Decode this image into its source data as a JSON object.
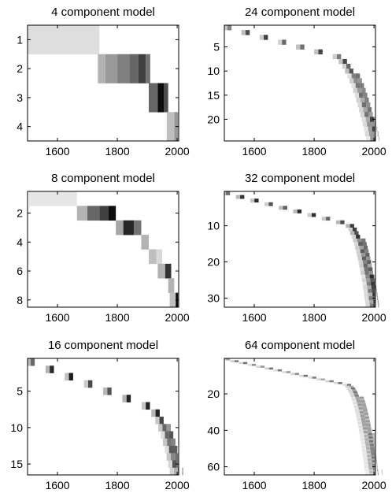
{
  "figure": {
    "description_colormap": "gray-inverted",
    "background_color": "#ffffff",
    "frame_color": "#000000"
  },
  "chart_data": [
    {
      "type": "heatmap",
      "title": "4 component model",
      "x_ticks": [
        1600,
        1800,
        2000
      ],
      "y_ticks": [
        1,
        2,
        3,
        4
      ],
      "xlim": [
        1500,
        2005
      ],
      "ylim": [
        0.5,
        4.5
      ],
      "y_reversed": true,
      "cells": [
        {
          "x0": 1500,
          "x1": 1740,
          "y": 1,
          "v": 0.13
        },
        {
          "x0": 1735,
          "x1": 1760,
          "y": 2,
          "v": 0.3
        },
        {
          "x0": 1760,
          "x1": 1800,
          "y": 2,
          "v": 0.4
        },
        {
          "x0": 1800,
          "x1": 1840,
          "y": 2,
          "v": 0.5
        },
        {
          "x0": 1840,
          "x1": 1870,
          "y": 2,
          "v": 0.6
        },
        {
          "x0": 1870,
          "x1": 1895,
          "y": 2,
          "v": 0.75
        },
        {
          "x0": 1895,
          "x1": 1910,
          "y": 2,
          "v": 0.55
        },
        {
          "x0": 1905,
          "x1": 1935,
          "y": 3,
          "v": 0.6
        },
        {
          "x0": 1935,
          "x1": 1955,
          "y": 3,
          "v": 0.95
        },
        {
          "x0": 1955,
          "x1": 1970,
          "y": 3,
          "v": 0.7
        },
        {
          "x0": 1965,
          "x1": 1990,
          "y": 4,
          "v": 0.25
        },
        {
          "x0": 1990,
          "x1": 2003,
          "y": 4,
          "v": 0.4
        }
      ]
    },
    {
      "type": "heatmap",
      "title": "24 component model",
      "x_ticks": [
        1600,
        1800,
        2000
      ],
      "y_ticks": [
        5,
        10,
        15,
        20
      ],
      "xlim": [
        1500,
        2005
      ],
      "ylim": [
        0.5,
        24.5
      ],
      "y_reversed": true,
      "diagonal": {
        "n": 24,
        "x_start": 1510,
        "x_knee": 1860,
        "x_end": 2003,
        "knee_frac": 0.25,
        "spread_start": 0.0,
        "spread_end": 25,
        "peak": 0.75
      }
    },
    {
      "type": "heatmap",
      "title": "8 component model",
      "x_ticks": [
        1600,
        1800,
        2000
      ],
      "y_ticks": [
        2,
        4,
        6,
        8
      ],
      "xlim": [
        1500,
        2005
      ],
      "ylim": [
        0.5,
        8.5
      ],
      "y_reversed": true,
      "cells": [
        {
          "x0": 1505,
          "x1": 1665,
          "y": 1,
          "v": 0.1
        },
        {
          "x0": 1665,
          "x1": 1700,
          "y": 2,
          "v": 0.3
        },
        {
          "x0": 1700,
          "x1": 1740,
          "y": 2,
          "v": 0.6
        },
        {
          "x0": 1740,
          "x1": 1770,
          "y": 2,
          "v": 0.75
        },
        {
          "x0": 1770,
          "x1": 1795,
          "y": 2,
          "v": 0.95
        },
        {
          "x0": 1795,
          "x1": 1820,
          "y": 3,
          "v": 0.35
        },
        {
          "x0": 1820,
          "x1": 1855,
          "y": 3,
          "v": 0.85
        },
        {
          "x0": 1855,
          "x1": 1880,
          "y": 3,
          "v": 0.55
        },
        {
          "x0": 1880,
          "x1": 1905,
          "y": 4,
          "v": 0.3
        },
        {
          "x0": 1905,
          "x1": 1930,
          "y": 5,
          "v": 0.25
        },
        {
          "x0": 1930,
          "x1": 1950,
          "y": 5,
          "v": 0.15
        },
        {
          "x0": 1935,
          "x1": 1960,
          "y": 6,
          "v": 0.3
        },
        {
          "x0": 1960,
          "x1": 1980,
          "y": 6,
          "v": 0.8
        },
        {
          "x0": 1970,
          "x1": 1990,
          "y": 7,
          "v": 0.3
        },
        {
          "x0": 1975,
          "x1": 1995,
          "y": 8,
          "v": 0.25
        },
        {
          "x0": 1995,
          "x1": 2003,
          "y": 8,
          "v": 0.95
        },
        {
          "x0": 1500,
          "x1": 1507,
          "y": 5,
          "v": 0.05
        }
      ]
    },
    {
      "type": "heatmap",
      "title": "32 component model",
      "x_ticks": [
        1600,
        1800,
        2000
      ],
      "y_ticks": [
        10,
        20,
        30
      ],
      "xlim": [
        1500,
        2005
      ],
      "ylim": [
        0.5,
        32.5
      ],
      "y_reversed": true,
      "diagonal": {
        "n": 32,
        "x_start": 1505,
        "x_knee": 1905,
        "x_end": 2003,
        "knee_frac": 0.27,
        "spread_start": 0.0,
        "spread_end": 30,
        "peak": 0.85
      }
    },
    {
      "type": "heatmap",
      "title": "16 component model",
      "x_ticks": [
        1600,
        1800,
        2000
      ],
      "y_ticks": [
        5,
        10,
        15
      ],
      "xlim": [
        1500,
        2005
      ],
      "ylim": [
        0.5,
        16.5
      ],
      "y_reversed": true,
      "diagonal": {
        "n": 16,
        "x_start": 1510,
        "x_knee": 1895,
        "x_end": 2003,
        "knee_frac": 0.4,
        "spread_start": 0.0,
        "spread_end": 20,
        "peak": 0.9
      }
    },
    {
      "type": "heatmap",
      "title": "64 component model",
      "x_ticks": [
        1600,
        1800,
        2000
      ],
      "y_ticks": [
        20,
        40,
        60
      ],
      "xlim": [
        1500,
        2005
      ],
      "ylim": [
        0.5,
        64.5
      ],
      "y_reversed": true,
      "diagonal": {
        "n": 64,
        "x_start": 1505,
        "x_knee": 1905,
        "x_end": 2003,
        "knee_frac": 0.22,
        "spread_start": 0.0,
        "spread_end": 35,
        "peak": 0.55
      }
    }
  ]
}
